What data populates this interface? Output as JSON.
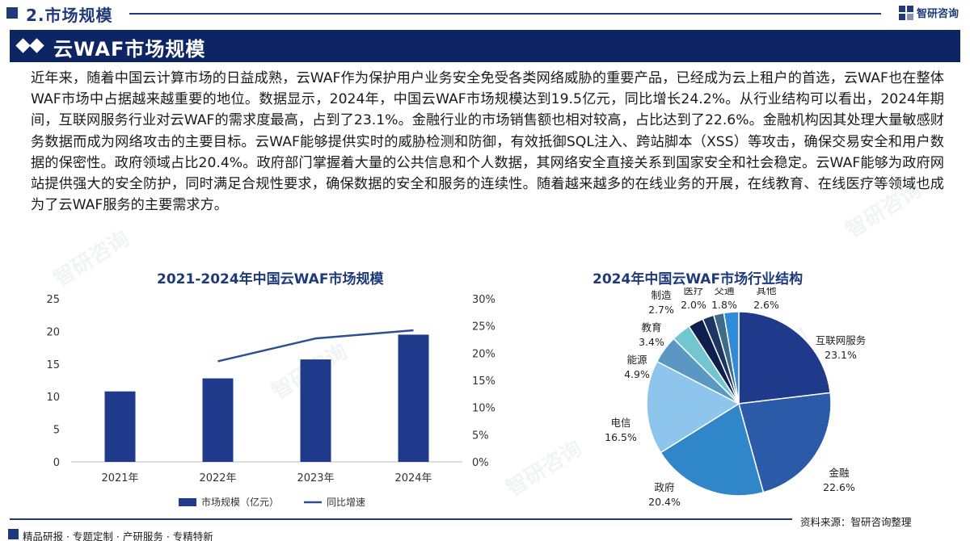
{
  "header": {
    "section_label": "2.市场规模",
    "brand_name": "智研咨询",
    "page_title": "云WAF市场规模"
  },
  "intro_text": "近年来，随着中国云计算市场的日益成熟，云WAF作为保护用户业务安全免受各类网络威胁的重要产品，已经成为云上租户的首选，云WAF也在整体WAF市场中占据越来越重要的地位。数据显示，2024年，中国云WAF市场规模达到19.5亿元，同比增长24.2%。从行业结构可以看出，2024年期间，互联网服务行业对云WAF的需求度最高，占到了23.1%。金融行业的市场销售额也相对较高，占比达到了22.6%。金融机构因其处理大量敏感财务数据而成为网络攻击的主要目标。云WAF能够提供实时的威胁检测和防御，有效抵御SQL注入、跨站脚本（XSS）等攻击，确保交易安全和用户数据的保密性。政府领域占比20.4%。政府部门掌握着大量的公共信息和个人数据，其网络安全直接关系到国家安全和社会稳定。云WAF能够为政府网站提供强大的安全防护，同时满足合规性要求，确保数据的安全和服务的连续性。随着越来越多的在线业务的开展，在线教育、在线医疗等领域也成为了云WAF服务的主要需求方。",
  "chart_data": [
    {
      "type": "bar",
      "title": "2021-2024年中国云WAF市场规模",
      "categories": [
        "2021年",
        "2022年",
        "2023年",
        "2024年"
      ],
      "series": [
        {
          "name": "市场规模（亿元）",
          "type": "bar",
          "axis": "left",
          "values": [
            10.8,
            12.8,
            15.7,
            19.5
          ],
          "color": "#1f3a8a"
        },
        {
          "name": "同比增速",
          "type": "line",
          "axis": "right",
          "values": [
            null,
            18.5,
            22.7,
            24.2
          ],
          "color": "#2e4f8f"
        }
      ],
      "left_axis": {
        "ylim": [
          0,
          25
        ],
        "ticks": [
          "0",
          "5",
          "10",
          "15",
          "20",
          "25"
        ],
        "tick_values": [
          0,
          5,
          10,
          15,
          20,
          25
        ]
      },
      "right_axis": {
        "ylim": [
          0,
          30
        ],
        "ticks": [
          "0%",
          "5%",
          "10%",
          "15%",
          "20%",
          "25%",
          "30%"
        ],
        "tick_values": [
          0,
          5,
          10,
          15,
          20,
          25,
          30
        ]
      },
      "grid": false,
      "legend_placement": "bottom"
    },
    {
      "type": "pie",
      "title": "2024年中国云WAF市场行业结构",
      "slices": [
        {
          "label": "互联网服务",
          "value": 23.1,
          "pct": "23.1%",
          "color": "#1f3a8a"
        },
        {
          "label": "金融",
          "value": 22.6,
          "pct": "22.6%",
          "color": "#2b5aa8"
        },
        {
          "label": "政府",
          "value": 20.4,
          "pct": "20.4%",
          "color": "#2f86c9"
        },
        {
          "label": "电信",
          "value": 16.5,
          "pct": "16.5%",
          "color": "#8ec5ec"
        },
        {
          "label": "能源",
          "value": 4.9,
          "pct": "4.9%",
          "color": "#5a97c2"
        },
        {
          "label": "教育",
          "value": 3.4,
          "pct": "3.4%",
          "color": "#72c6cf"
        },
        {
          "label": "制造",
          "value": 2.7,
          "pct": "2.7%",
          "color": "#0f1f4d"
        },
        {
          "label": "医疗",
          "value": 2.0,
          "pct": "2.0%",
          "color": "#1d3563"
        },
        {
          "label": "交通",
          "value": 1.8,
          "pct": "1.8%",
          "color": "#3d6b8a"
        },
        {
          "label": "其他",
          "value": 2.6,
          "pct": "2.6%",
          "color": "#2f8ad8"
        }
      ]
    }
  ],
  "source_text": "资料来源：智研咨询整理",
  "footer_text": "精品研报 · 专题定制 · 产研服务 · 专精特新",
  "watermark_text": "智研咨询"
}
